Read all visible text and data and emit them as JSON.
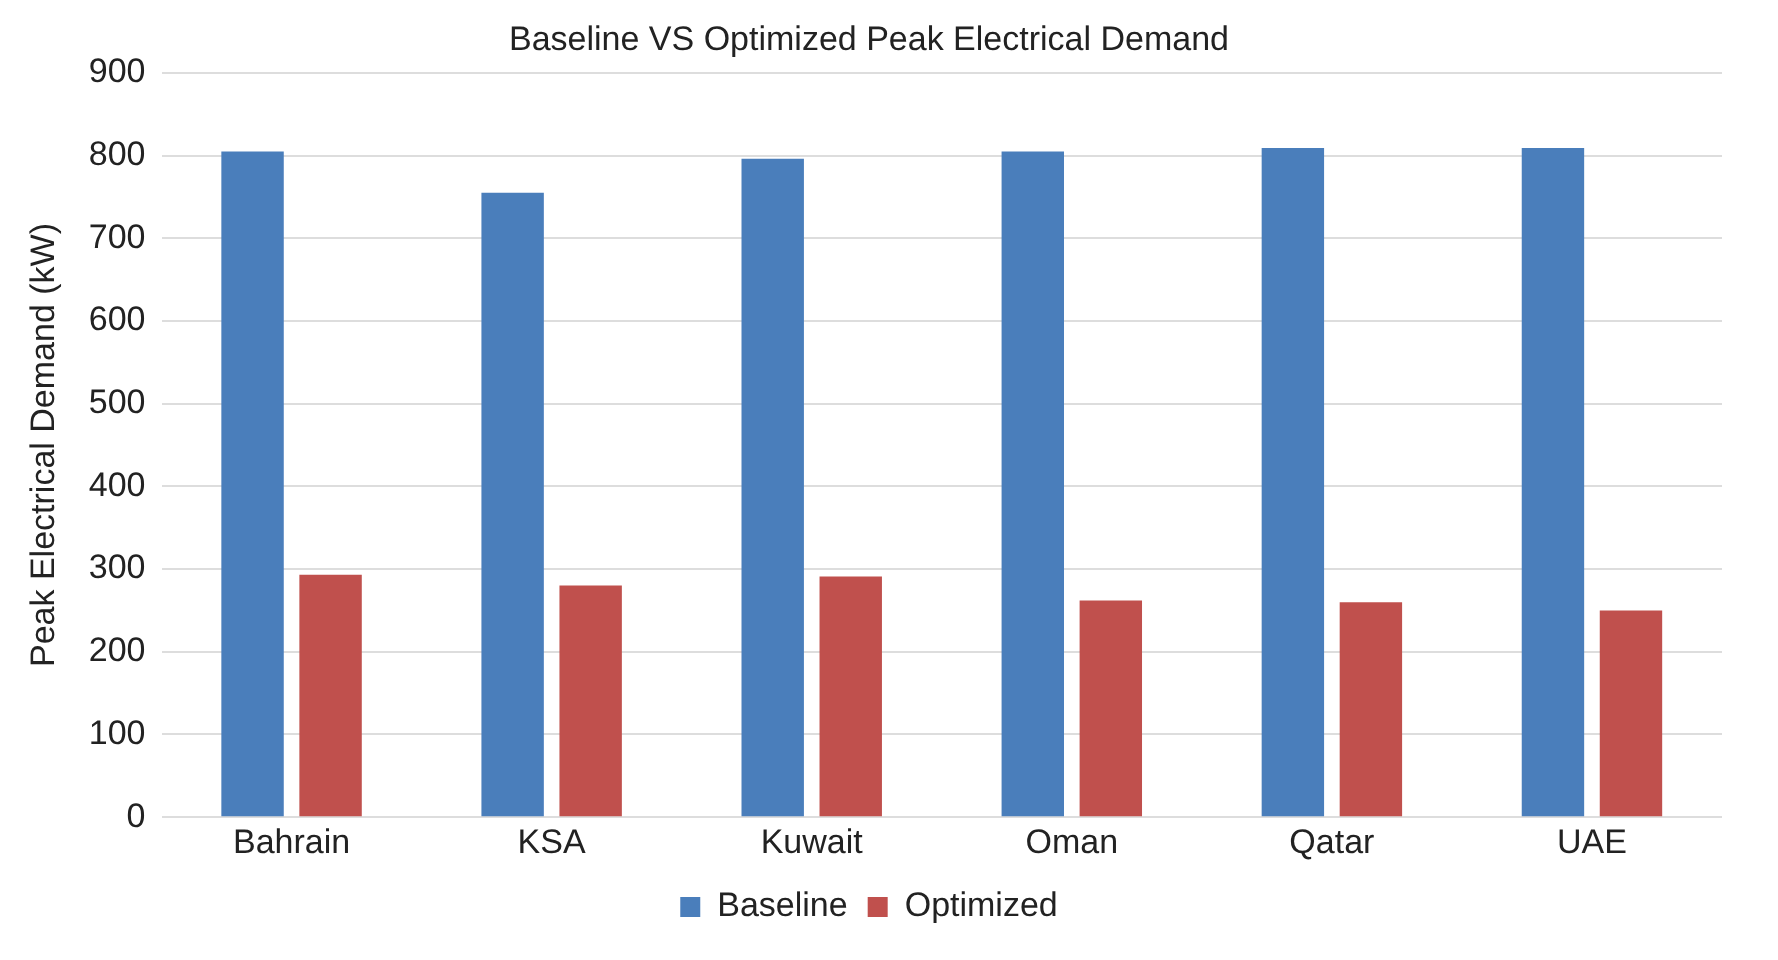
{
  "chart_data": {
    "type": "bar",
    "title": "Baseline VS Optimized Peak Electrical Demand",
    "ylabel": "Peak Electrical Demand (kW)",
    "categories": [
      "Bahrain",
      "KSA",
      "Kuwait",
      "Oman",
      "Qatar",
      "UAE"
    ],
    "series": [
      {
        "name": "Baseline",
        "color": "#4a7ebb",
        "values": [
          805,
          755,
          796,
          805,
          809,
          809
        ]
      },
      {
        "name": "Optimized",
        "color": "#c0504d",
        "values": [
          293,
          280,
          291,
          262,
          260,
          250
        ]
      }
    ],
    "ylim": [
      0,
      900
    ],
    "yticks": [
      0,
      100,
      200,
      300,
      400,
      500,
      600,
      700,
      800,
      900
    ],
    "grid": "y",
    "legend": "bottom"
  }
}
